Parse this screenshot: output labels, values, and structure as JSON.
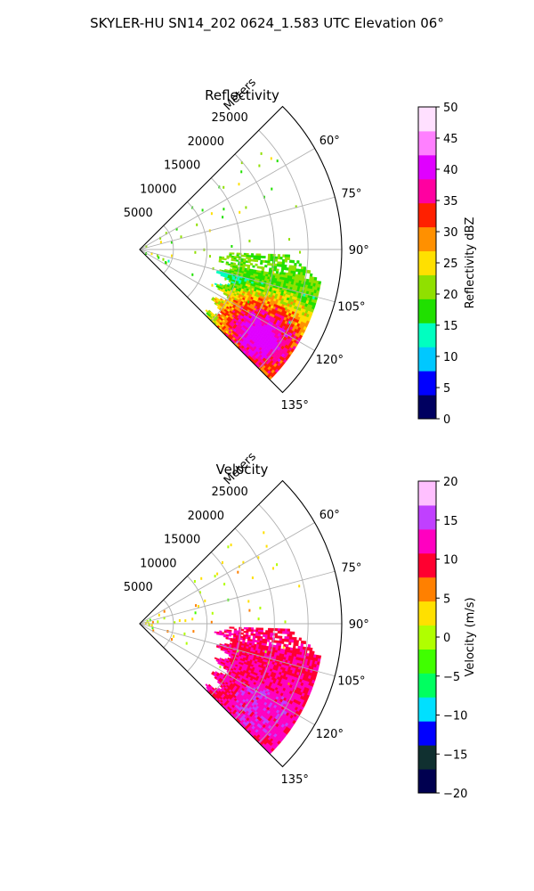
{
  "figure_title": "SKYLER-HU  SN14_202  0624_1.583 UTC Elevation 06°",
  "chart_data": [
    {
      "type": "heatmap",
      "projection": "polar-sector",
      "title": "Reflectivity",
      "radial_axis_label": "Meters",
      "radial_ticks": [
        "5000",
        "10000",
        "15000",
        "20000",
        "25000"
      ],
      "radial_tick_values": [
        5000,
        10000,
        15000,
        20000,
        25000
      ],
      "rlim": [
        0,
        30000
      ],
      "angle_ticks": [
        "60°",
        "75°",
        "90°",
        "105°",
        "120°",
        "135°"
      ],
      "angle_tick_values": [
        60,
        75,
        90,
        105,
        120,
        135
      ],
      "theta_range_deg": [
        45,
        135
      ],
      "grid": true,
      "colorbar": {
        "label": "Reflectivity dBZ",
        "ticks": [
          "0",
          "5",
          "10",
          "15",
          "20",
          "25",
          "30",
          "35",
          "40",
          "45",
          "50"
        ],
        "range": [
          0,
          50
        ]
      },
      "colors": [
        "#000060",
        "#0000ff",
        "#00c8ff",
        "#00ffc0",
        "#20e000",
        "#90e000",
        "#ffe000",
        "#ff9000",
        "#ff2000",
        "#ff00a0",
        "#e000ff",
        "#ff80ff",
        "#ffe0ff"
      ]
    },
    {
      "type": "heatmap",
      "projection": "polar-sector",
      "title": "Velocity",
      "radial_axis_label": "Meters",
      "radial_ticks": [
        "5000",
        "10000",
        "15000",
        "20000",
        "25000"
      ],
      "radial_tick_values": [
        5000,
        10000,
        15000,
        20000,
        25000
      ],
      "rlim": [
        0,
        30000
      ],
      "angle_ticks": [
        "60°",
        "75°",
        "90°",
        "105°",
        "120°",
        "135°"
      ],
      "angle_tick_values": [
        60,
        75,
        90,
        105,
        120,
        135
      ],
      "theta_range_deg": [
        45,
        135
      ],
      "grid": true,
      "colorbar": {
        "label": "Velocity (m/s)",
        "ticks": [
          "−20",
          "−15",
          "−10",
          "−5",
          "0",
          "5",
          "10",
          "15",
          "20"
        ],
        "range": [
          -20,
          20
        ]
      },
      "colors": [
        "#000050",
        "#103030",
        "#0000ff",
        "#00e0ff",
        "#00ff60",
        "#40ff00",
        "#b0ff00",
        "#ffe000",
        "#ff8000",
        "#ff0030",
        "#ff00c0",
        "#c040ff",
        "#ffc0ff"
      ]
    }
  ]
}
